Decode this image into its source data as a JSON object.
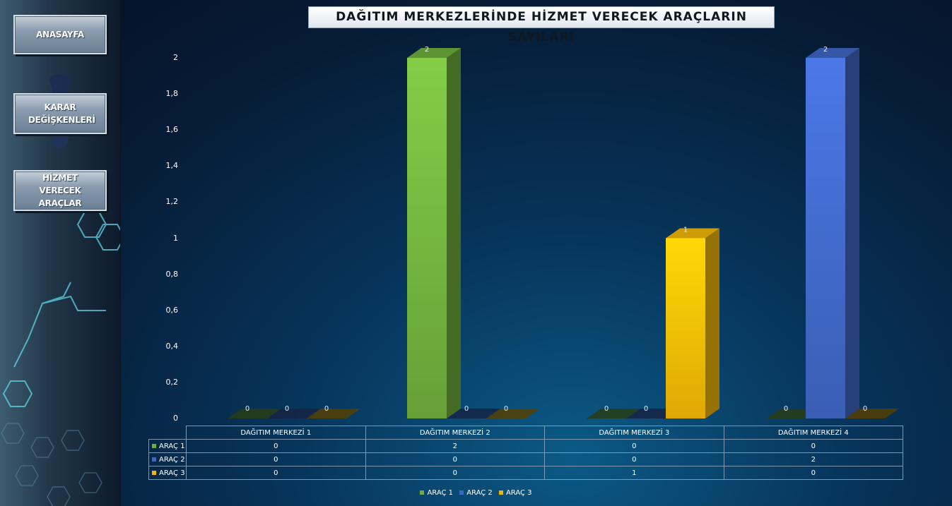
{
  "sidebar": {
    "buttons": [
      {
        "label": "ANASAYFA"
      },
      {
        "label": "KARAR DEĞİŞKENLERİ"
      },
      {
        "label": "HİZMET VERECEK ARAÇLAR"
      }
    ]
  },
  "colors": {
    "arac1": "#6fae3c",
    "arac2": "#3f66c4",
    "arac3": "#f2b705"
  },
  "chart_data": {
    "type": "bar",
    "title": "DAĞITIM MERKEZLERİNDE HİZMET VERECEK ARAÇLARIN SAYILARI",
    "categories": [
      "DAĞITIM MERKEZİ 1",
      "DAĞITIM MERKEZİ 2",
      "DAĞITIM MERKEZİ 3",
      "DAĞITIM MERKEZİ 4"
    ],
    "series": [
      {
        "name": "ARAÇ 1",
        "values": [
          0,
          2,
          0,
          0
        ]
      },
      {
        "name": "ARAÇ 2",
        "values": [
          0,
          0,
          0,
          2
        ]
      },
      {
        "name": "ARAÇ 3",
        "values": [
          0,
          0,
          1,
          0
        ]
      }
    ],
    "yticks": [
      "0",
      "0,2",
      "0,4",
      "0,6",
      "0,8",
      "1",
      "1,2",
      "1,4",
      "1,6",
      "1,8",
      "2"
    ],
    "ylim": [
      0,
      2
    ],
    "legend_position": "bottom",
    "data_table": true,
    "grid": false
  }
}
